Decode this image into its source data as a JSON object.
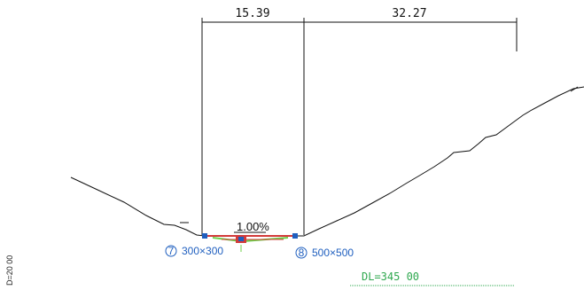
{
  "colors": {
    "paper": "#ffffff",
    "line": "#111111",
    "blue_annotation": "#1f5fbf",
    "green_annotation": "#2fa84f",
    "pipe_red": "#d23a3a",
    "pipe_green": "#6fcf4a"
  },
  "dimensions": {
    "left_span": "15.39",
    "right_span": "32.27"
  },
  "slope_label": "1.00%",
  "pipes": {
    "left": {
      "number": "7",
      "size": "300×300"
    },
    "right": {
      "number": "8",
      "size": "500×500"
    }
  },
  "datum_label": "DL=345 00",
  "scale_label": "D=20 00"
}
